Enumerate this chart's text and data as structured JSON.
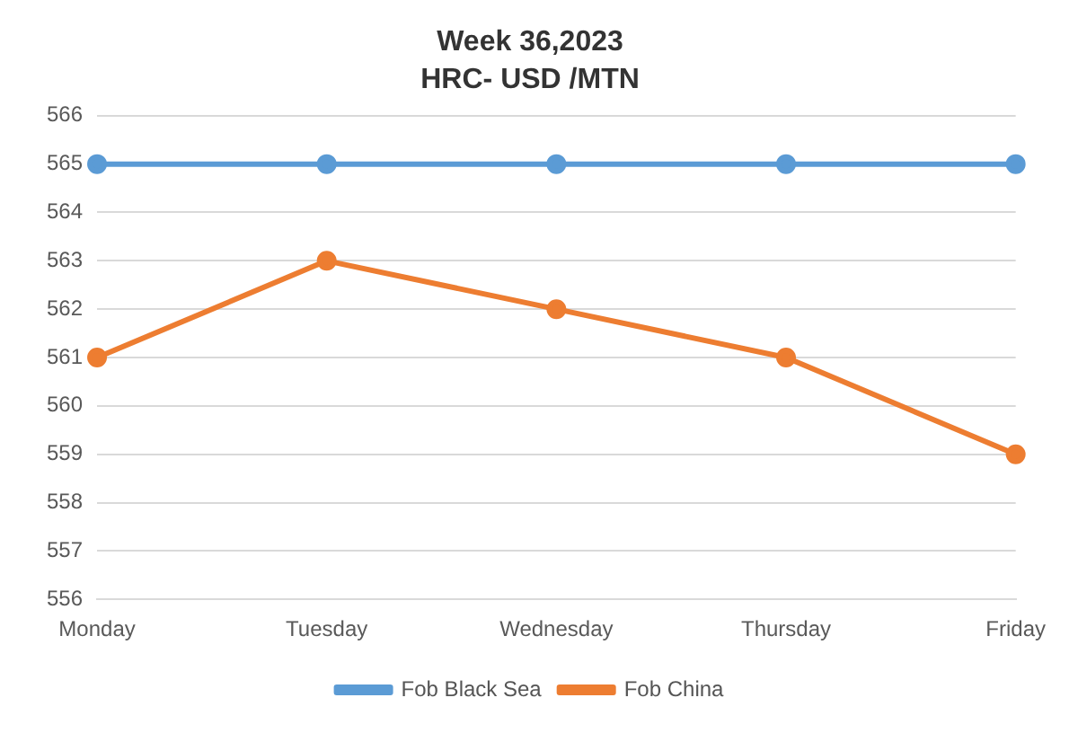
{
  "chart_data": {
    "type": "line",
    "title": "Week 36,2023",
    "subtitle": "HRC- USD /MTN",
    "categories": [
      "Monday",
      "Tuesday",
      "Wednesday",
      "Thursday",
      "Friday"
    ],
    "series": [
      {
        "name": "Fob Black Sea",
        "color": "#5b9bd5",
        "values": [
          565,
          565,
          565,
          565,
          565
        ]
      },
      {
        "name": "Fob China",
        "color": "#ed7d31",
        "values": [
          561,
          563,
          562,
          561,
          559
        ]
      }
    ],
    "ylim": [
      556,
      566
    ],
    "yticks": [
      556,
      557,
      558,
      559,
      560,
      561,
      562,
      563,
      564,
      565,
      566
    ],
    "grid": "y",
    "legend": "bottom",
    "marker": "circle",
    "line_style": "solid"
  }
}
